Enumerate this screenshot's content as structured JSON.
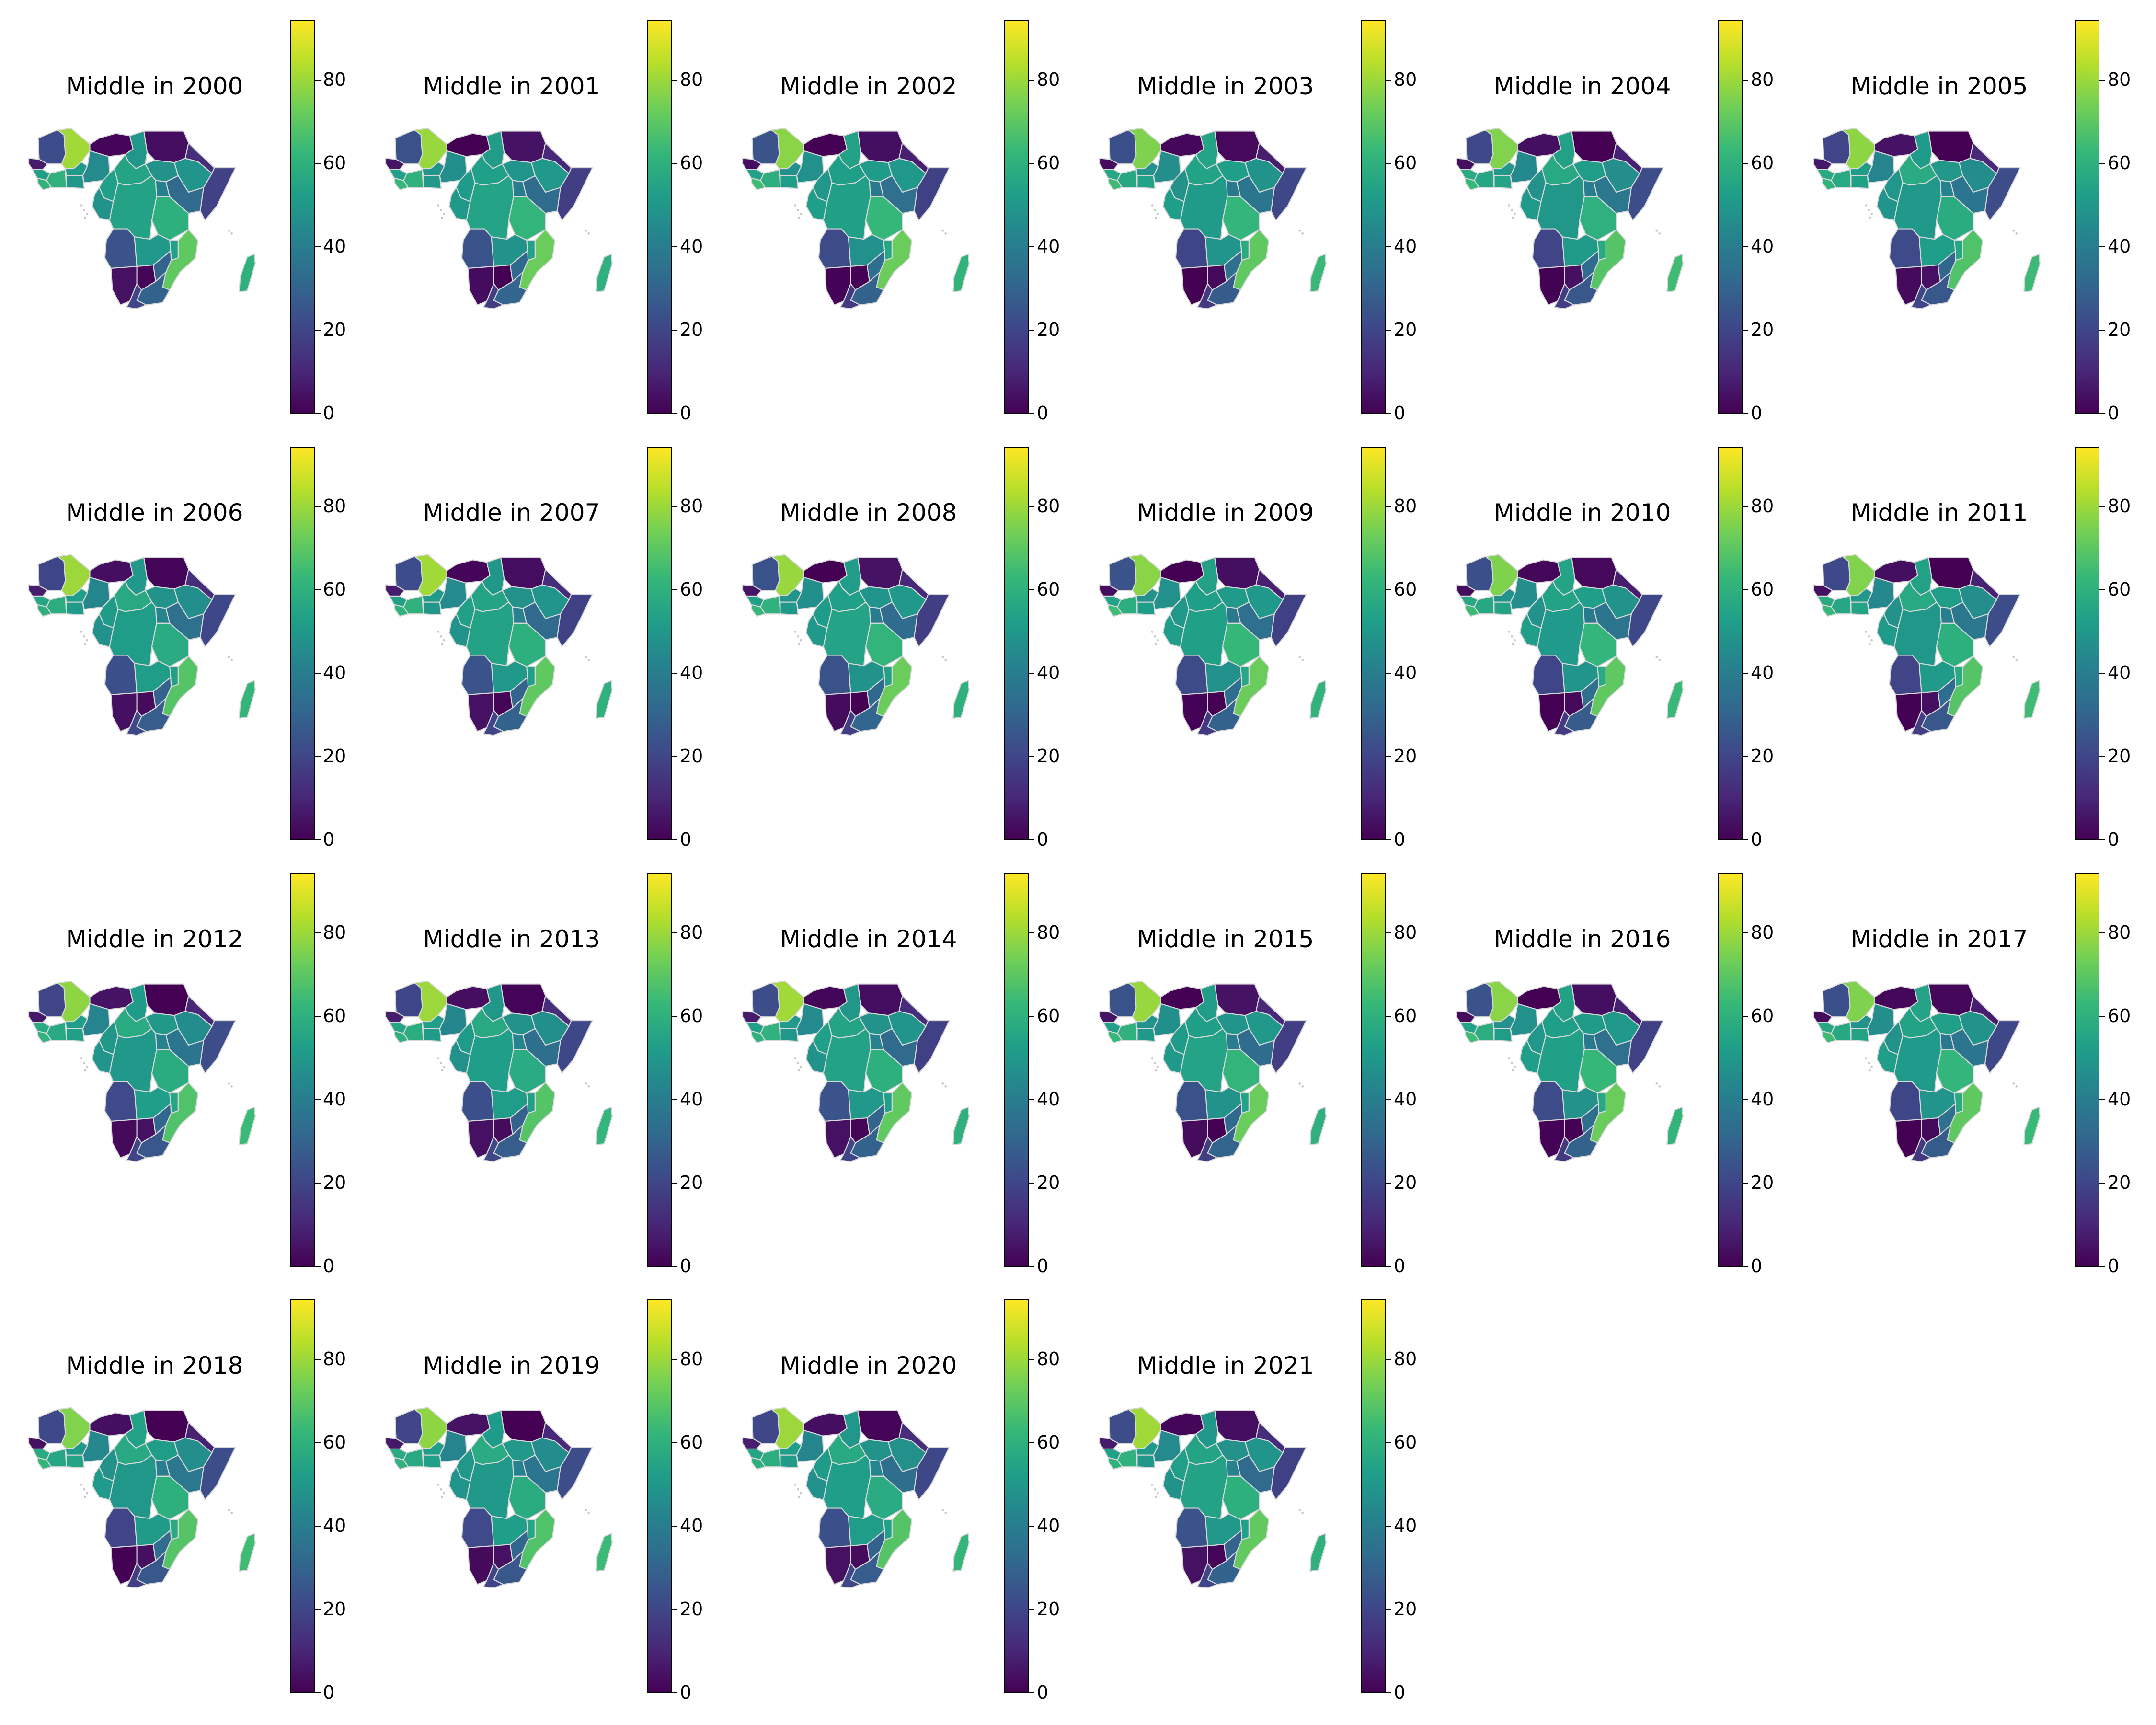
{
  "figure": {
    "colormap": "viridis",
    "colors": {
      "v0": "#440154",
      "v10": "#482878",
      "v20": "#3e4989",
      "v30": "#31688e",
      "v40": "#26828e",
      "v50": "#1f9e89",
      "v60": "#35b779",
      "v70": "#6ece58",
      "v80": "#b5de2b",
      "v90": "#fde725",
      "border": "#d8d8d8",
      "islands": "#c8c8c8"
    }
  },
  "chart_data": {
    "type": "choropleth-small-multiples",
    "grid": {
      "rows": 4,
      "cols": 6
    },
    "colorbar": {
      "min": 0,
      "max": 94,
      "ticks": [
        0,
        20,
        40,
        60,
        80
      ]
    },
    "panels": [
      {
        "title": "Middle in 2000",
        "year": 2000
      },
      {
        "title": "Middle in 2001",
        "year": 2001
      },
      {
        "title": "Middle in 2002",
        "year": 2002
      },
      {
        "title": "Middle in 2003",
        "year": 2003
      },
      {
        "title": "Middle in 2004",
        "year": 2004
      },
      {
        "title": "Middle in 2005",
        "year": 2005
      },
      {
        "title": "Middle in 2006",
        "year": 2006
      },
      {
        "title": "Middle in 2007",
        "year": 2007
      },
      {
        "title": "Middle in 2008",
        "year": 2008
      },
      {
        "title": "Middle in 2009",
        "year": 2009
      },
      {
        "title": "Middle in 2010",
        "year": 2010
      },
      {
        "title": "Middle in 2011",
        "year": 2011
      },
      {
        "title": "Middle in 2012",
        "year": 2012
      },
      {
        "title": "Middle in 2013",
        "year": 2013
      },
      {
        "title": "Middle in 2014",
        "year": 2014
      },
      {
        "title": "Middle in 2015",
        "year": 2015
      },
      {
        "title": "Middle in 2016",
        "year": 2016
      },
      {
        "title": "Middle in 2017",
        "year": 2017
      },
      {
        "title": "Middle in 2018",
        "year": 2018
      },
      {
        "title": "Middle in 2019",
        "year": 2019
      },
      {
        "title": "Middle in 2020",
        "year": 2020
      },
      {
        "title": "Middle in 2021",
        "year": 2021
      }
    ],
    "regions": [
      {
        "name": "mauritania",
        "value": 22
      },
      {
        "name": "mali",
        "value": 78
      },
      {
        "name": "niger",
        "value": 2
      },
      {
        "name": "chad",
        "value": 52
      },
      {
        "name": "sudan",
        "value": 2
      },
      {
        "name": "senegal-coast",
        "value": 5
      },
      {
        "name": "guinea",
        "value": 55
      },
      {
        "name": "sierra-leone-liberia",
        "value": 62
      },
      {
        "name": "cote-divoire",
        "value": 58
      },
      {
        "name": "burkina-faso",
        "value": 50
      },
      {
        "name": "ghana-togo-benin",
        "value": 52
      },
      {
        "name": "nigeria",
        "value": 45
      },
      {
        "name": "cameroon",
        "value": 50
      },
      {
        "name": "central-african-republic",
        "value": 55
      },
      {
        "name": "south-sudan",
        "value": 50
      },
      {
        "name": "ethiopia",
        "value": 48
      },
      {
        "name": "eritrea-djibouti",
        "value": 10
      },
      {
        "name": "somalia",
        "value": 20
      },
      {
        "name": "gabon-congo",
        "value": 50
      },
      {
        "name": "dr-congo",
        "value": 52
      },
      {
        "name": "uganda",
        "value": 40
      },
      {
        "name": "kenya",
        "value": 35
      },
      {
        "name": "tanzania",
        "value": 60
      },
      {
        "name": "angola",
        "value": 22
      },
      {
        "name": "zambia",
        "value": 50
      },
      {
        "name": "malawi",
        "value": 55
      },
      {
        "name": "mozambique",
        "value": 70
      },
      {
        "name": "namibia",
        "value": 2
      },
      {
        "name": "botswana",
        "value": 2
      },
      {
        "name": "zimbabwe",
        "value": 32
      },
      {
        "name": "south-africa-east",
        "value": 28
      },
      {
        "name": "south-africa-lowveld",
        "value": 18
      },
      {
        "name": "madagascar",
        "value": 62
      }
    ]
  }
}
